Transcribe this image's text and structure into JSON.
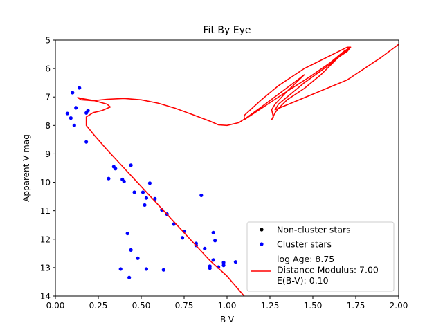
{
  "chart_data": {
    "type": "scatter",
    "title": "Fit By Eye",
    "xlabel": "B-V",
    "ylabel": "Apparent V mag",
    "xlim": [
      0.0,
      2.0
    ],
    "ylim": [
      14,
      5
    ],
    "y_inverted": true,
    "grid": false,
    "legend_placement": "lower-right",
    "x_ticks": [
      "0.00",
      "0.25",
      "0.50",
      "0.75",
      "1.00",
      "1.25",
      "1.50",
      "1.75",
      "2.00"
    ],
    "y_ticks": [
      "5",
      "6",
      "7",
      "8",
      "9",
      "10",
      "11",
      "12",
      "13",
      "14"
    ],
    "series": [
      {
        "name": "Non-cluster stars",
        "kind": "scatter",
        "color": "#000000",
        "points": []
      },
      {
        "name": "Cluster stars",
        "kind": "scatter",
        "color": "#0000ff",
        "points": [
          [
            0.14,
            6.68
          ],
          [
            0.1,
            6.85
          ],
          [
            0.12,
            7.38
          ],
          [
            0.07,
            7.58
          ],
          [
            0.09,
            7.74
          ],
          [
            0.18,
            7.56
          ],
          [
            0.19,
            7.48
          ],
          [
            0.11,
            8.0
          ],
          [
            0.18,
            8.58
          ],
          [
            0.34,
            9.45
          ],
          [
            0.35,
            9.52
          ],
          [
            0.44,
            9.4
          ],
          [
            0.31,
            9.87
          ],
          [
            0.39,
            9.9
          ],
          [
            0.4,
            9.97
          ],
          [
            0.55,
            10.03
          ],
          [
            0.46,
            10.35
          ],
          [
            0.51,
            10.35
          ],
          [
            0.53,
            10.55
          ],
          [
            0.58,
            10.58
          ],
          [
            0.52,
            10.8
          ],
          [
            0.85,
            10.46
          ],
          [
            0.62,
            10.97
          ],
          [
            0.65,
            11.12
          ],
          [
            0.69,
            11.47
          ],
          [
            0.75,
            11.73
          ],
          [
            0.74,
            11.95
          ],
          [
            0.42,
            11.8
          ],
          [
            0.92,
            11.77
          ],
          [
            0.82,
            12.15
          ],
          [
            0.82,
            12.22
          ],
          [
            0.87,
            12.33
          ],
          [
            0.93,
            12.05
          ],
          [
            0.44,
            12.38
          ],
          [
            0.48,
            12.67
          ],
          [
            0.92,
            12.73
          ],
          [
            0.9,
            12.95
          ],
          [
            0.9,
            13.02
          ],
          [
            0.95,
            12.98
          ],
          [
            0.98,
            12.92
          ],
          [
            0.98,
            12.82
          ],
          [
            1.05,
            12.8
          ],
          [
            0.38,
            13.05
          ],
          [
            0.53,
            13.05
          ],
          [
            0.63,
            13.08
          ],
          [
            0.43,
            13.35
          ]
        ]
      },
      {
        "name": "log Age: 8.75\nDistance Modulus: 7.00\nE(B-V): 0.10",
        "kind": "line",
        "color": "#ff0000",
        "points": [
          [
            1.1,
            14.0
          ],
          [
            1.0,
            13.3
          ],
          [
            0.9,
            12.75
          ],
          [
            0.8,
            12.1
          ],
          [
            0.7,
            11.45
          ],
          [
            0.6,
            10.8
          ],
          [
            0.5,
            10.15
          ],
          [
            0.4,
            9.5
          ],
          [
            0.3,
            8.85
          ],
          [
            0.22,
            8.3
          ],
          [
            0.18,
            8.0
          ],
          [
            0.18,
            7.7
          ],
          [
            0.22,
            7.55
          ],
          [
            0.27,
            7.48
          ],
          [
            0.32,
            7.35
          ],
          [
            0.3,
            7.25
          ],
          [
            0.22,
            7.12
          ],
          [
            0.15,
            7.05
          ],
          [
            0.13,
            7.02
          ],
          [
            0.15,
            7.1
          ],
          [
            0.22,
            7.13
          ],
          [
            0.3,
            7.08
          ],
          [
            0.4,
            7.05
          ],
          [
            0.5,
            7.1
          ],
          [
            0.6,
            7.22
          ],
          [
            0.7,
            7.4
          ],
          [
            0.8,
            7.62
          ],
          [
            0.9,
            7.85
          ],
          [
            0.95,
            7.98
          ],
          [
            1.0,
            8.0
          ],
          [
            1.07,
            7.9
          ],
          [
            1.12,
            7.7
          ],
          [
            1.2,
            7.35
          ],
          [
            1.3,
            6.9
          ],
          [
            1.4,
            6.45
          ],
          [
            1.45,
            6.22
          ],
          [
            1.35,
            6.8
          ],
          [
            1.28,
            7.25
          ],
          [
            1.26,
            7.45
          ],
          [
            1.27,
            7.7
          ],
          [
            1.26,
            7.8
          ],
          [
            1.28,
            7.55
          ],
          [
            1.3,
            7.4
          ],
          [
            1.35,
            7.1
          ],
          [
            1.45,
            6.7
          ],
          [
            1.55,
            6.2
          ],
          [
            1.65,
            5.6
          ],
          [
            1.7,
            5.4
          ],
          [
            1.72,
            5.25
          ],
          [
            1.68,
            5.4
          ],
          [
            1.6,
            5.8
          ],
          [
            1.48,
            6.3
          ],
          [
            1.35,
            6.8
          ],
          [
            1.1,
            7.8
          ],
          [
            1.1,
            7.65
          ],
          [
            1.2,
            7.1
          ],
          [
            1.3,
            6.6
          ],
          [
            1.45,
            6.0
          ],
          [
            1.6,
            5.55
          ],
          [
            1.7,
            5.25
          ],
          [
            1.72,
            5.25
          ],
          [
            1.6,
            5.85
          ],
          [
            1.45,
            6.5
          ],
          [
            1.3,
            7.25
          ],
          [
            1.28,
            7.45
          ],
          [
            1.5,
            6.9
          ],
          [
            1.7,
            6.4
          ],
          [
            1.9,
            5.6
          ],
          [
            2.0,
            5.15
          ]
        ]
      }
    ]
  }
}
